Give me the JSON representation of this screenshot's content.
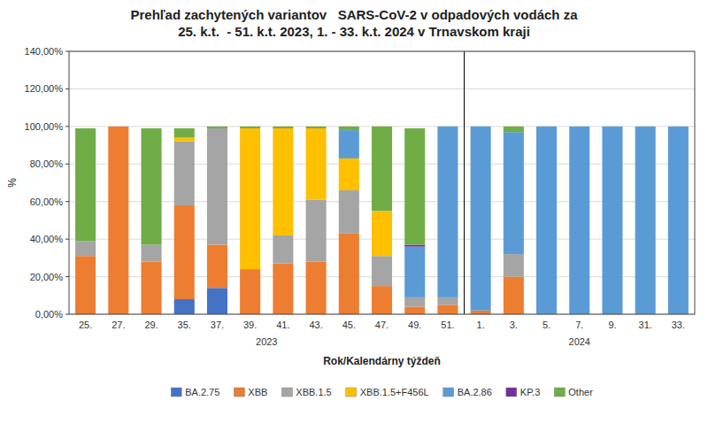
{
  "chart_data": {
    "type": "bar",
    "stacked": true,
    "title": "Prehľad zachytených variantov   SARS-CoV-2 v odpadových vodách za\n25. k.t.  - 51. k.t. 2023, 1. - 33. k.t. 2024 v Trnavskom kraji",
    "xlabel": "Rok/Kalendárny týždeň",
    "ylabel": "%",
    "categories": [
      "25.",
      "27.",
      "29.",
      "35.",
      "37.",
      "39.",
      "41.",
      "43.",
      "45.",
      "47.",
      "49.",
      "51.",
      "1.",
      "3.",
      "5.",
      "7.",
      "9.",
      "31.",
      "33."
    ],
    "series": [
      {
        "name": "BA.2.75",
        "color": "#4472C4",
        "values": [
          0,
          0,
          0,
          0.08,
          0.14,
          0,
          0,
          0,
          0,
          0,
          0,
          0,
          0,
          0,
          0,
          0,
          0,
          0,
          0
        ]
      },
      {
        "name": "XBB",
        "color": "#ED7D31",
        "values": [
          0.31,
          1.0,
          0.28,
          0.5,
          0.23,
          0.24,
          0.27,
          0.28,
          0.43,
          0.15,
          0.04,
          0.05,
          0.02,
          0.2,
          0,
          0,
          0,
          0,
          0
        ]
      },
      {
        "name": "XBB.1.5",
        "color": "#A5A5A5",
        "values": [
          0.08,
          0,
          0.09,
          0.34,
          0.62,
          0,
          0.15,
          0.33,
          0.23,
          0.16,
          0.05,
          0.04,
          0,
          0.12,
          0,
          0,
          0,
          0,
          0
        ]
      },
      {
        "name": "XBB.1.5+F456L",
        "color": "#FFC000",
        "values": [
          0,
          0,
          0,
          0.02,
          0,
          0.75,
          0.57,
          0.38,
          0.17,
          0.24,
          0,
          0,
          0,
          0,
          0,
          0,
          0,
          0,
          0
        ]
      },
      {
        "name": "BA.2.86",
        "color": "#5B9BD5",
        "values": [
          0,
          0,
          0,
          0,
          0,
          0,
          0,
          0,
          0.15,
          0,
          0.27,
          0.91,
          0.98,
          0.65,
          1.0,
          1.0,
          1.0,
          1.0,
          1.0
        ]
      },
      {
        "name": "KP.3",
        "color": "#7030A0",
        "values": [
          0,
          0,
          0,
          0,
          0,
          0,
          0,
          0,
          0,
          0,
          0.01,
          0,
          0,
          0,
          0,
          0,
          0,
          0,
          0
        ]
      },
      {
        "name": "Other",
        "color": "#70AD47",
        "values": [
          0.6,
          0,
          0.62,
          0.05,
          0.01,
          0.01,
          0.01,
          0.01,
          0.02,
          0.45,
          0.62,
          0,
          0,
          0.03,
          0,
          0,
          0,
          0,
          0
        ]
      }
    ],
    "ylim": [
      0,
      1.4
    ],
    "yticks": [
      {
        "value": 0,
        "label": "0,00%"
      },
      {
        "value": 0.2,
        "label": "20,00%"
      },
      {
        "value": 0.4,
        "label": "40,00%"
      },
      {
        "value": 0.6,
        "label": "60,00%"
      },
      {
        "value": 0.8,
        "label": "80,00%"
      },
      {
        "value": 1.0,
        "label": "100,00%"
      },
      {
        "value": 1.2,
        "label": "120,00%"
      },
      {
        "value": 1.4,
        "label": "140,00%"
      }
    ],
    "annotations": [
      {
        "text": "2023",
        "x": 5.5
      },
      {
        "text": "2024",
        "x": 15.0
      }
    ],
    "vline": 11.5,
    "grid": true,
    "legend": "bottom"
  }
}
